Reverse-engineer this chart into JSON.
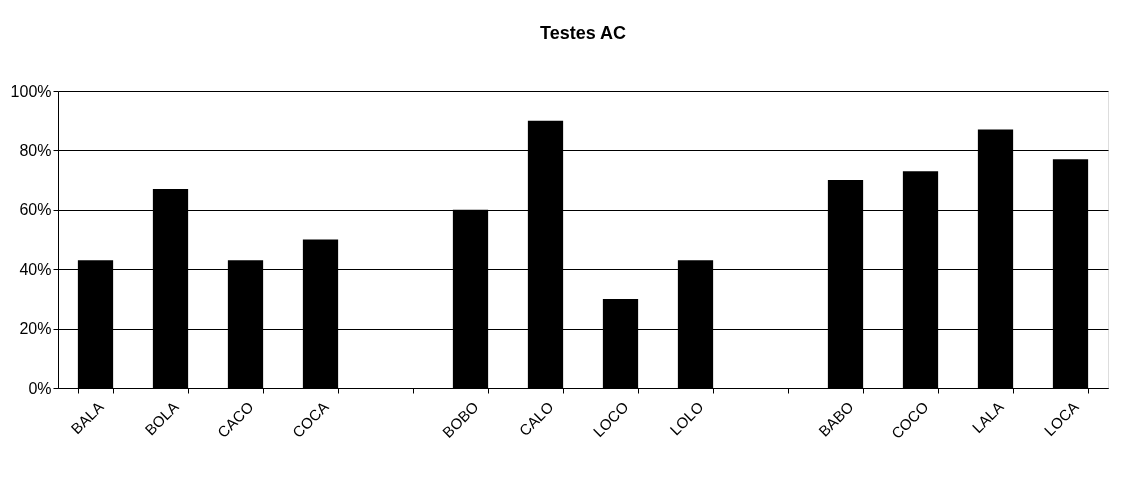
{
  "chart_data": {
    "type": "bar",
    "title": "Testes AC",
    "categories": [
      "BALA",
      "BOLA",
      "CACO",
      "COCA",
      null,
      "BOBO",
      "CALO",
      "LOCO",
      "LOLO",
      null,
      "BABO",
      "COCO",
      "LALA",
      "LOCA"
    ],
    "values": [
      43,
      67,
      43,
      50,
      null,
      60,
      90,
      30,
      43,
      null,
      70,
      73,
      87,
      77
    ],
    "color": "#000000",
    "ylim": [
      0,
      100
    ],
    "yticks": [
      {
        "value": 0,
        "label": "0%"
      },
      {
        "value": 20,
        "label": "20%"
      },
      {
        "value": 40,
        "label": "40%"
      },
      {
        "value": 60,
        "label": "60%"
      },
      {
        "value": 80,
        "label": "80%"
      },
      {
        "value": 100,
        "label": "100%"
      }
    ],
    "grid": "y"
  }
}
